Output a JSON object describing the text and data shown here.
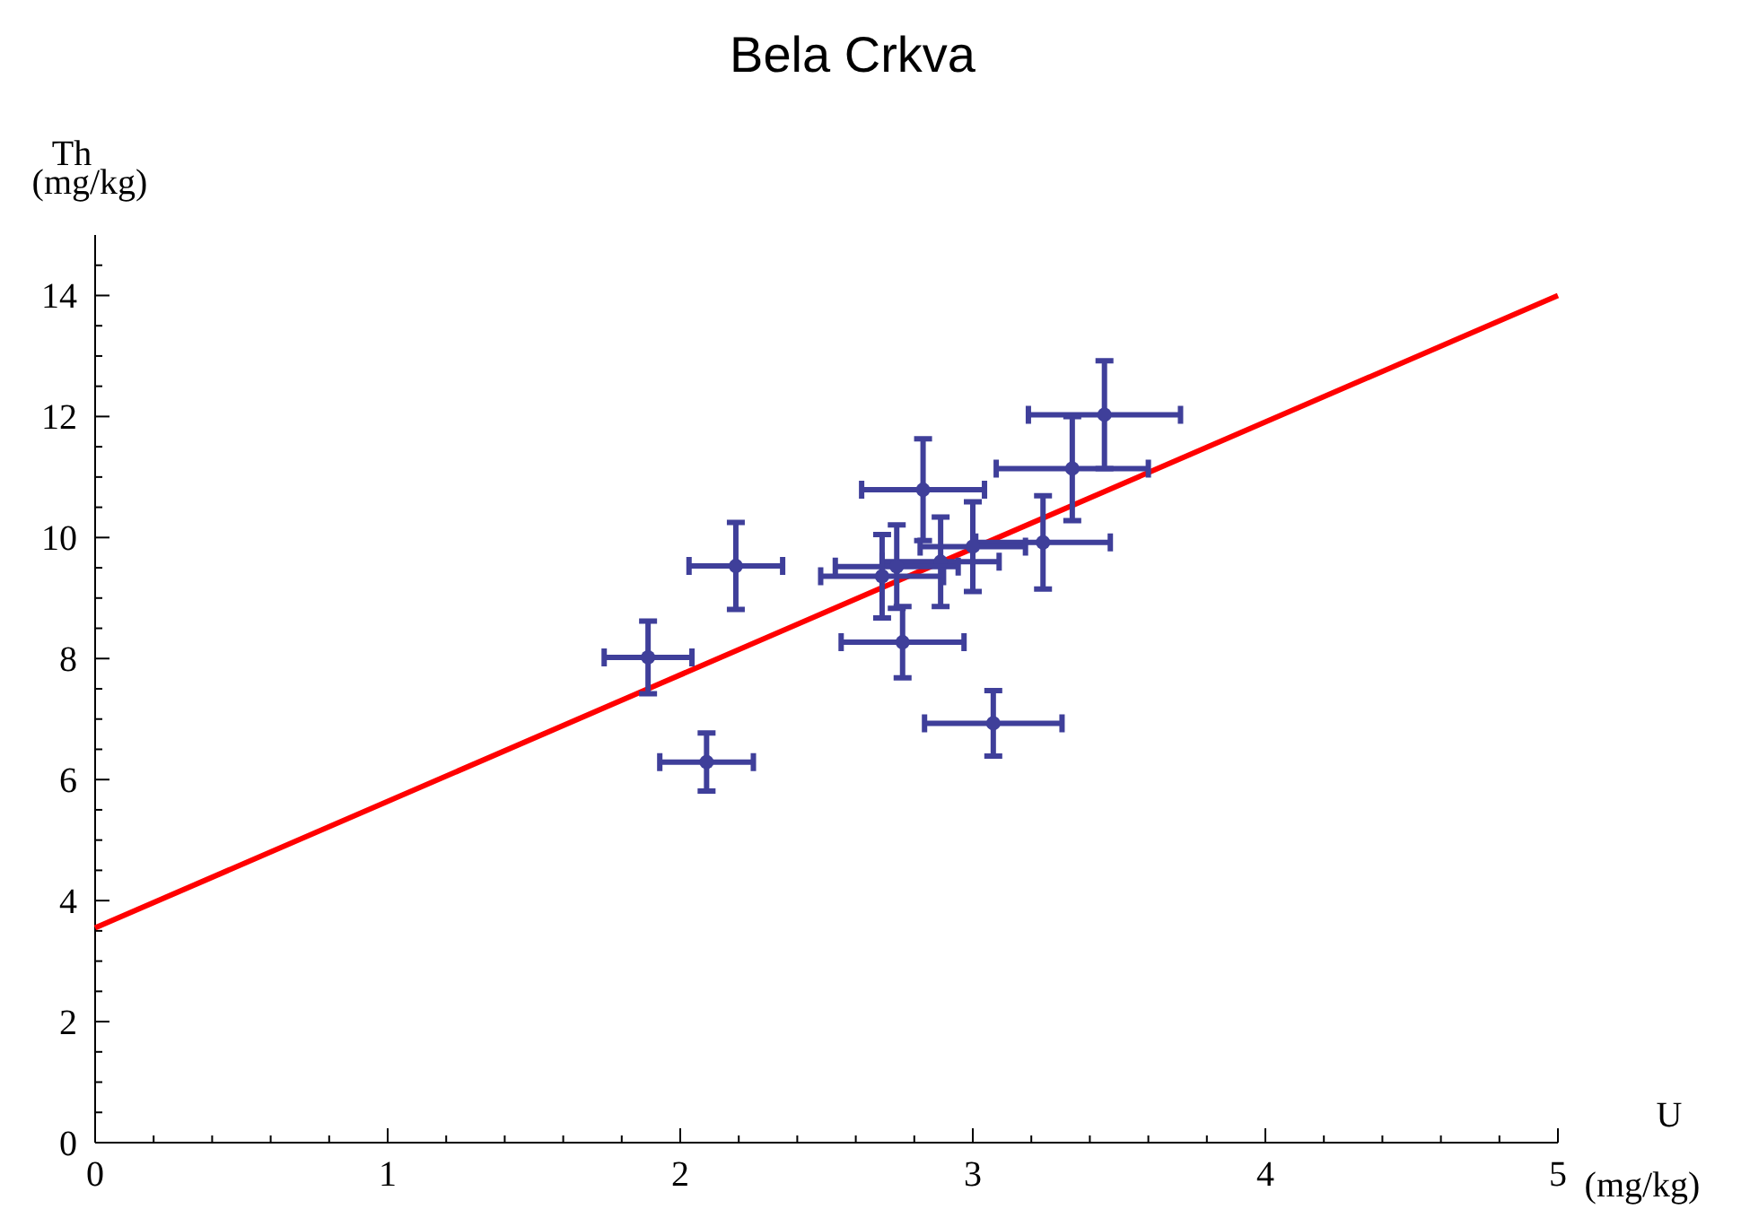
{
  "chart_data": {
    "type": "scatter",
    "title": "Bela Crkva",
    "xlabel": "U (mg/kg)",
    "ylabel": "Th (mg/kg)",
    "xlim": [
      0,
      5
    ],
    "ylim": [
      0,
      15
    ],
    "xticks": [
      0,
      {
        "value": 0.2,
        "label": null
      },
      {
        "value": 0.4,
        "label": null
      },
      {
        "value": 0.6,
        "label": null
      },
      {
        "value": 0.8,
        "label": null
      },
      1,
      {
        "value": 1.2,
        "label": null
      },
      {
        "value": 1.4,
        "label": null
      },
      {
        "value": 1.6,
        "label": null
      },
      {
        "value": 1.8,
        "label": null
      },
      2,
      {
        "value": 2.2,
        "label": null
      },
      {
        "value": 2.4,
        "label": null
      },
      {
        "value": 2.6,
        "label": null
      },
      {
        "value": 2.8,
        "label": null
      },
      3,
      {
        "value": 3.2,
        "label": null
      },
      {
        "value": 3.4,
        "label": null
      },
      {
        "value": 3.6,
        "label": null
      },
      {
        "value": 3.8,
        "label": null
      },
      4,
      {
        "value": 4.2,
        "label": null
      },
      {
        "value": 4.4,
        "label": null
      },
      {
        "value": 4.6,
        "label": null
      },
      {
        "value": 4.8,
        "label": null
      },
      5
    ],
    "yticks": [
      0,
      {
        "value": 0.5,
        "label": null
      },
      {
        "value": 1,
        "label": null
      },
      {
        "value": 1.5,
        "label": null
      },
      2,
      {
        "value": 2.5,
        "label": null
      },
      {
        "value": 3,
        "label": null
      },
      {
        "value": 3.5,
        "label": null
      },
      4,
      {
        "value": 4.5,
        "label": null
      },
      {
        "value": 5,
        "label": null
      },
      {
        "value": 5.5,
        "label": null
      },
      6,
      {
        "value": 6.5,
        "label": null
      },
      {
        "value": 7,
        "label": null
      },
      {
        "value": 7.5,
        "label": null
      },
      8,
      {
        "value": 8.5,
        "label": null
      },
      {
        "value": 9,
        "label": null
      },
      {
        "value": 9.5,
        "label": null
      },
      10,
      {
        "value": 10.5,
        "label": null
      },
      {
        "value": 11,
        "label": null
      },
      {
        "value": 11.5,
        "label": null
      },
      12,
      {
        "value": 12.5,
        "label": null
      },
      {
        "value": 13,
        "label": null
      },
      {
        "value": 13.5,
        "label": null
      },
      14,
      {
        "value": 14.5,
        "label": null
      }
    ],
    "grid": false,
    "series": [
      {
        "color": "#3f3f9a",
        "marker": "circle",
        "x": [
          1.89,
          2.19,
          2.09,
          2.83,
          2.76,
          3.07,
          3.24,
          3.34,
          3.45,
          3.0,
          2.89,
          2.74,
          2.69
        ],
        "values": [
          8.02,
          9.53,
          6.29,
          10.79,
          8.27,
          6.93,
          9.92,
          11.14,
          12.03,
          9.85,
          9.6,
          9.52,
          9.36
        ],
        "errors": [
          0.6,
          0.72,
          0.48,
          0.84,
          0.59,
          0.54,
          0.77,
          0.86,
          0.89,
          0.74,
          0.74,
          0.69,
          0.69
        ],
        "xerrors": [
          0.15,
          0.16,
          0.16,
          0.21,
          0.21,
          0.235,
          0.23,
          0.26,
          0.26,
          0.18,
          0.2,
          0.21,
          0.21
        ]
      },
      {
        "type": "line",
        "color": "#ff0000",
        "x": [
          0,
          5
        ],
        "values": [
          3.55,
          14.0
        ],
        "marker": "none"
      }
    ]
  }
}
